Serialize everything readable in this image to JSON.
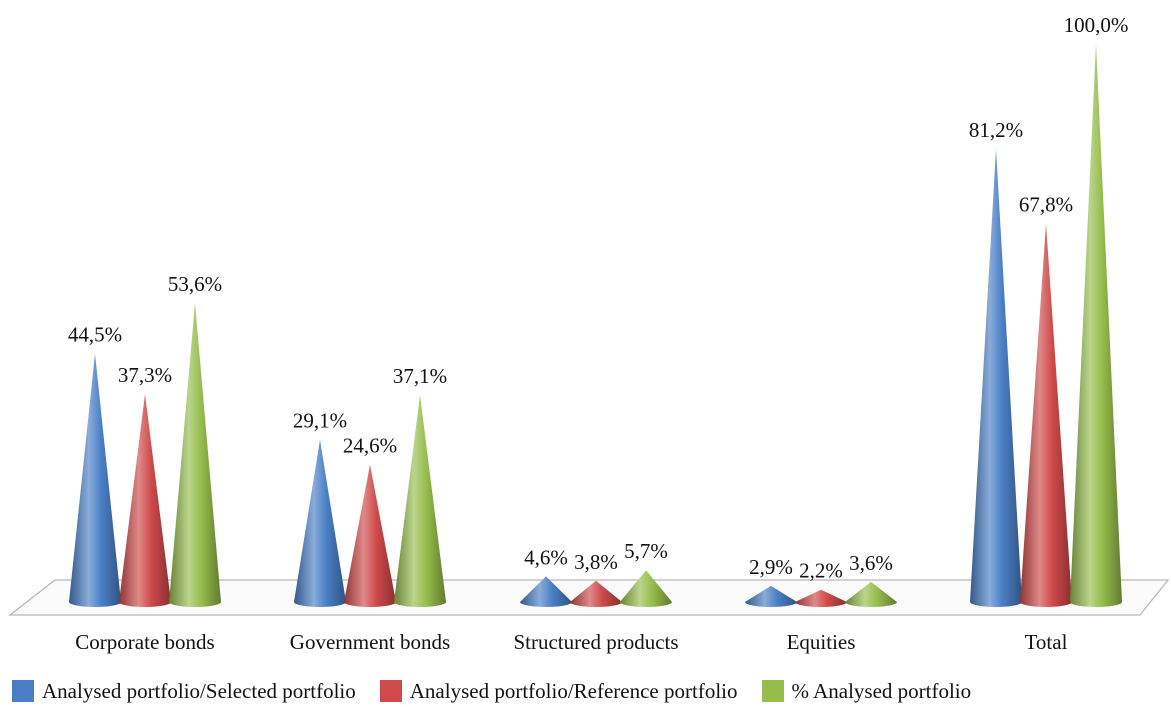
{
  "chart_data": {
    "type": "bar",
    "style": "3d-cone",
    "categories": [
      "Corporate bonds",
      "Government bonds",
      "Structured products",
      "Equities",
      "Total"
    ],
    "series": [
      {
        "name": "Analysed portfolio/Selected portfolio",
        "color": "#4a7fc6",
        "values": [
          44.5,
          29.1,
          4.6,
          2.9,
          81.2
        ],
        "labels": [
          "44,5%",
          "29,1%",
          "4,6%",
          "2,9%",
          "81,2%"
        ]
      },
      {
        "name": "Analysed portfolio/Reference portfolio",
        "color": "#cf4a4a",
        "values": [
          37.3,
          24.6,
          3.8,
          2.2,
          67.8
        ],
        "labels": [
          "37,3%",
          "24,6%",
          "3,8%",
          "2,2%",
          "67,8%"
        ]
      },
      {
        "name": "% Analysed portfolio",
        "color": "#96bd4c",
        "values": [
          53.6,
          37.1,
          5.7,
          3.6,
          100.0
        ],
        "labels": [
          "53,6%",
          "37,1%",
          "5,7%",
          "3,6%",
          "100,0%"
        ]
      }
    ],
    "ylim": [
      0,
      100
    ],
    "grid": false,
    "legend_position": "bottom"
  }
}
